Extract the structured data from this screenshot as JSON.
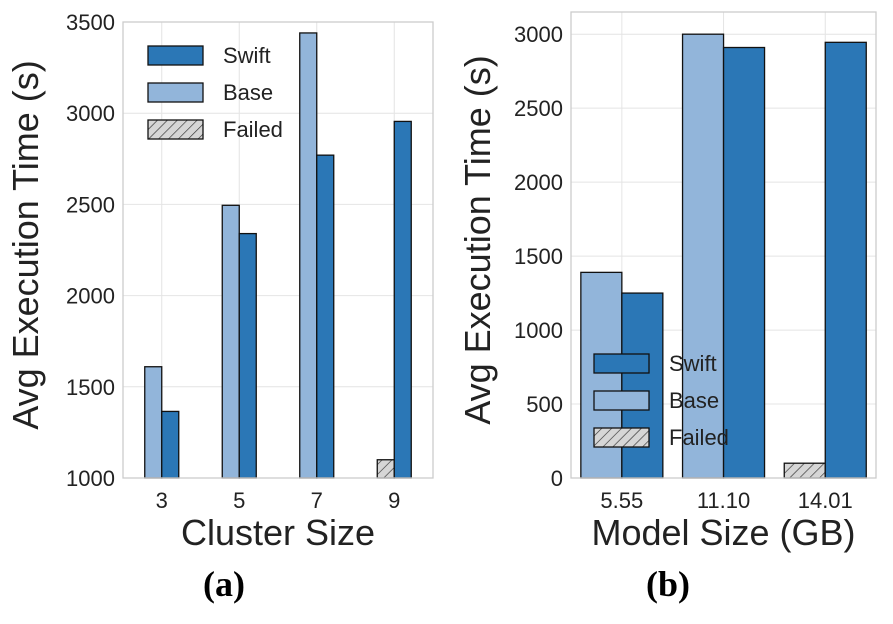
{
  "chart_data": [
    {
      "type": "bar",
      "panel_label": "(a)",
      "categories": [
        "3",
        "5",
        "7",
        "9"
      ],
      "xlabel": "Cluster Size",
      "ylabel": "Avg Execution Time (s)",
      "ylim": [
        1000,
        3500
      ],
      "yticks": [
        "1000",
        "1500",
        "2000",
        "2500",
        "3000",
        "3500"
      ],
      "series": [
        {
          "name": "Base",
          "values": [
            1610,
            2495,
            3440,
            null
          ]
        },
        {
          "name": "Swift",
          "values": [
            1365,
            2340,
            2770,
            2955
          ]
        }
      ],
      "failed": {
        "name": "Failed",
        "values": [
          null,
          null,
          null,
          1100
        ]
      },
      "legend_order": [
        "Swift",
        "Base",
        "Failed"
      ],
      "legend_position": "top-left",
      "grid": true
    },
    {
      "type": "bar",
      "panel_label": "(b)",
      "categories": [
        "5.55",
        "11.10",
        "14.01"
      ],
      "xlabel": "Model Size (GB)",
      "ylabel": "Avg Execution Time (s)",
      "ylim": [
        0,
        3150
      ],
      "yticks": [
        "0",
        "500",
        "1000",
        "1500",
        "2000",
        "2500",
        "3000"
      ],
      "series": [
        {
          "name": "Base",
          "values": [
            1390,
            3000,
            null
          ]
        },
        {
          "name": "Swift",
          "values": [
            1250,
            2910,
            2945
          ]
        }
      ],
      "failed": {
        "name": "Failed",
        "values": [
          null,
          null,
          100
        ]
      },
      "legend_order": [
        "Swift",
        "Base",
        "Failed"
      ],
      "legend_position": "lower-left",
      "grid": true
    }
  ],
  "colors": {
    "swift": "#2b77b6",
    "base": "#92b5da",
    "failed": "#d6d6d6",
    "grid": "#e4e4e4",
    "spine": "#cccccc"
  }
}
